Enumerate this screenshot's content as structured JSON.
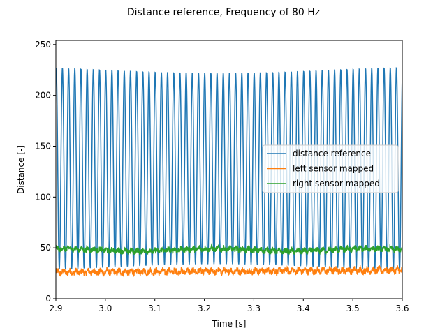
{
  "chart_data": {
    "type": "line",
    "title": "Distance reference, Frequency of 80 Hz",
    "xlabel": "Time [s]",
    "ylabel": "Distance [-]",
    "xlim": [
      2.9,
      3.6
    ],
    "ylim": [
      0,
      254
    ],
    "xticks": [
      2.9,
      3.0,
      3.1,
      3.2,
      3.3,
      3.4,
      3.5,
      3.6
    ],
    "xtick_labels": [
      "2.9",
      "3.0",
      "3.1",
      "3.2",
      "3.3",
      "3.4",
      "3.5",
      "3.6"
    ],
    "yticks": [
      0,
      50,
      100,
      150,
      200,
      250
    ],
    "ytick_labels": [
      "0",
      "50",
      "100",
      "150",
      "200",
      "250"
    ],
    "grid": false,
    "legend_position": "center-right",
    "series": [
      {
        "name": "distance reference",
        "color": "#1f77b4",
        "description_params": {
          "frequency_hz": 80,
          "min": 28,
          "max": 228
        }
      },
      {
        "name": "left sensor mapped",
        "color": "#ff7f0e",
        "description_params": {
          "mean": 26,
          "noise": 3
        }
      },
      {
        "name": "right sensor mapped",
        "color": "#2ca02c",
        "description_params": {
          "mean": 48,
          "noise": 2.5
        }
      }
    ]
  }
}
